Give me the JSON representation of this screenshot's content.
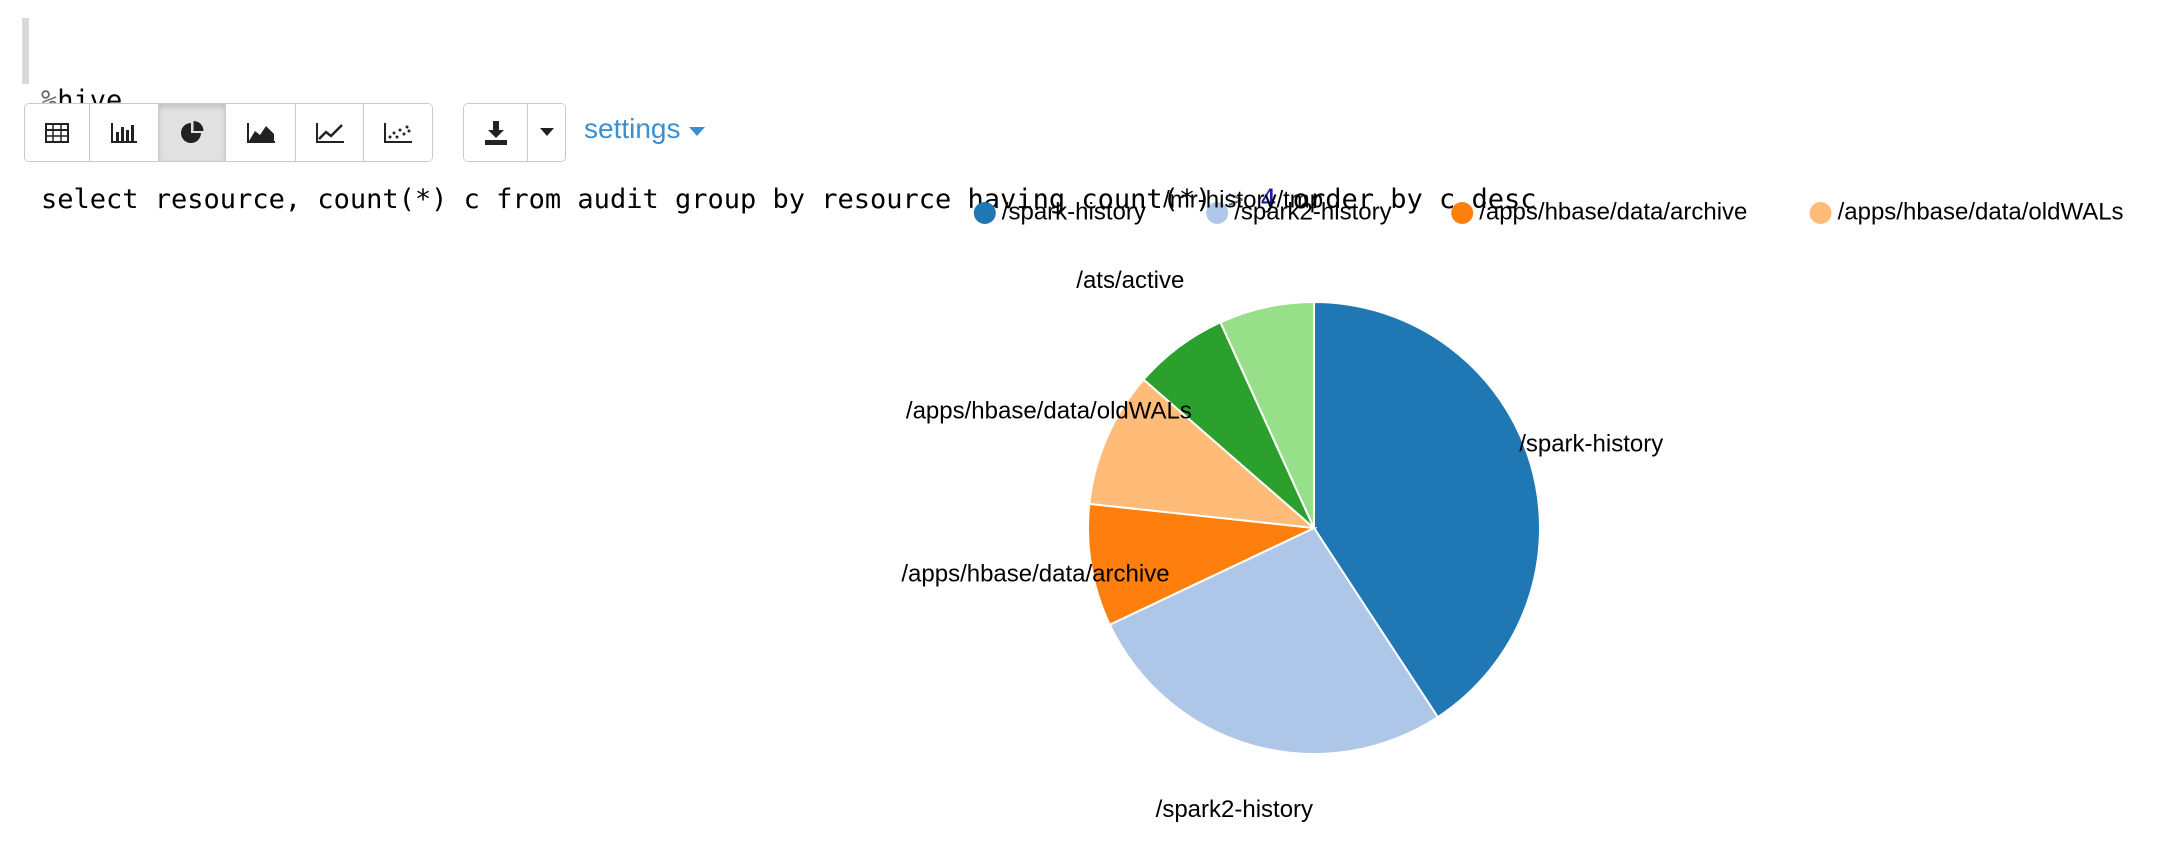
{
  "editor": {
    "interpreter": "%hive",
    "query": {
      "before_op": "select resource, count(*) c from audit group by resource having count(*) ",
      "op": ">",
      "number": "4",
      "after": " order by c desc"
    }
  },
  "toolbar": {
    "visualizations": [
      {
        "name": "table-view-button",
        "icon": "table-icon",
        "active": false
      },
      {
        "name": "bar-chart-button",
        "icon": "bar-chart-icon",
        "active": false
      },
      {
        "name": "pie-chart-button",
        "icon": "pie-chart-icon",
        "active": true
      },
      {
        "name": "area-chart-button",
        "icon": "area-chart-icon",
        "active": false
      },
      {
        "name": "line-chart-button",
        "icon": "line-chart-icon",
        "active": false
      },
      {
        "name": "scatter-chart-button",
        "icon": "scatter-chart-icon",
        "active": false
      }
    ],
    "download_icon": "download-icon",
    "dropdown_icon": "caret-down-icon",
    "settings_label": "settings"
  },
  "chart_data": {
    "type": "pie",
    "legend": [
      "/spark-history",
      "/spark2-history",
      "/apps/hbase/data/archive",
      "/apps/hbase/data/oldWALs"
    ],
    "legend_position": "top-right",
    "slices": [
      {
        "label": "/spark-history",
        "value": 42,
        "color": "#1f77b4"
      },
      {
        "label": "/spark2-history",
        "value": 28,
        "color": "#aec7e8"
      },
      {
        "label": "/apps/hbase/data/archive",
        "value": 9,
        "color": "#ff7f0e"
      },
      {
        "label": "/apps/hbase/data/oldWALs",
        "value": 10,
        "color": "#ffbb78"
      },
      {
        "label": "/ats/active",
        "value": 7,
        "color": "#2ca02c"
      },
      {
        "label": "/mr-history/tmp",
        "value": 7,
        "color": "#98df8a"
      }
    ]
  }
}
